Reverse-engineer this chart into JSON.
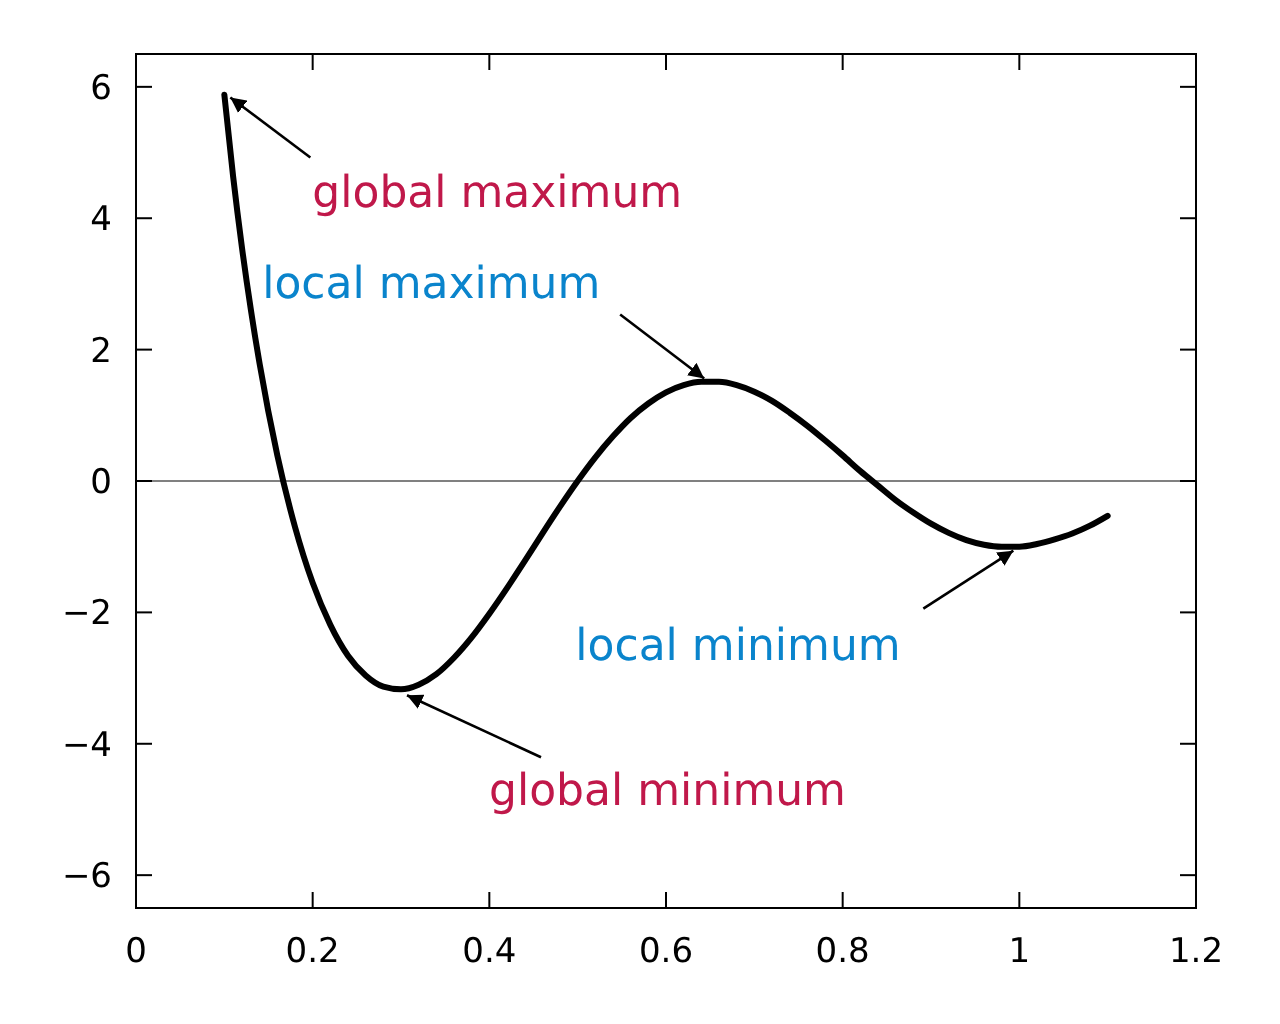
{
  "chart_data": {
    "type": "line",
    "x": [
      0.1,
      0.11,
      0.12,
      0.13,
      0.14,
      0.16,
      0.18,
      0.2,
      0.22,
      0.24,
      0.26,
      0.28,
      0.3,
      0.32,
      0.34,
      0.36,
      0.38,
      0.4,
      0.42,
      0.44,
      0.46,
      0.48,
      0.5,
      0.52,
      0.54,
      0.56,
      0.58,
      0.6,
      0.62,
      0.64,
      0.66,
      0.68,
      0.7,
      0.72,
      0.74,
      0.76,
      0.78,
      0.8,
      0.82,
      0.84,
      0.86,
      0.88,
      0.9,
      0.92,
      0.94,
      0.96,
      0.98,
      1.0,
      1.02,
      1.04,
      1.06,
      1.08,
      1.1
    ],
    "series": [
      {
        "color": "#000000",
        "values": [
          5.88,
          4.63,
          3.55,
          2.61,
          1.78,
          0.39,
          -0.7,
          -1.55,
          -2.19,
          -2.66,
          -2.96,
          -3.13,
          -3.17,
          -3.1,
          -2.94,
          -2.69,
          -2.38,
          -2.02,
          -1.63,
          -1.22,
          -0.8,
          -0.39,
          0.0,
          0.36,
          0.68,
          0.96,
          1.18,
          1.35,
          1.46,
          1.51,
          1.51,
          1.46,
          1.36,
          1.22,
          1.04,
          0.84,
          0.62,
          0.39,
          0.15,
          -0.07,
          -0.29,
          -0.48,
          -0.65,
          -0.79,
          -0.9,
          -0.97,
          -1.0,
          -1.0,
          -0.96,
          -0.89,
          -0.8,
          -0.68,
          -0.53
        ]
      }
    ],
    "xlim": [
      0,
      1.2
    ],
    "xticks": [
      0,
      0.2,
      0.4,
      0.6,
      0.8,
      1,
      1.2
    ],
    "ylim": [
      -6.5,
      6.5
    ],
    "yticks": [
      {
        "value": -6,
        "label": "−6"
      },
      {
        "value": -4,
        "label": "−4"
      },
      {
        "value": -2,
        "label": "−2"
      },
      0,
      2,
      4,
      6
    ],
    "grid": false,
    "marker": "none",
    "line_style": "solid",
    "ref_lines": [
      {
        "axis": "y",
        "value": 0,
        "color": "#808080"
      }
    ],
    "annotations": [
      {
        "text": "global maximum",
        "x": 0.1,
        "y": 5.9
      },
      {
        "text": "local maximum",
        "x": 0.65,
        "y": 1.5
      },
      {
        "text": "local minimum",
        "x": 1.0,
        "y": -1.0
      },
      {
        "text": "global minimum",
        "x": 0.3,
        "y": -3.2
      }
    ]
  }
}
